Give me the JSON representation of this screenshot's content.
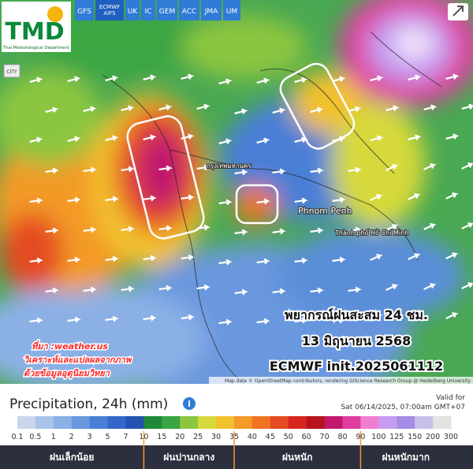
{
  "logo": {
    "title": "TMD",
    "subtitle": "Thai Meteorological Department"
  },
  "model_tabs": [
    "GFS",
    "ECMWF AIFS",
    "UK",
    "IC",
    "GEM",
    "ACC",
    "JMA",
    "UM"
  ],
  "city_button": "CITY",
  "map_labels": {
    "bangkok": "กรุงเทพมหานคร",
    "phnom_penh": "Phnom Penh",
    "hcmc": "Thành phố Hồ Chí Minh"
  },
  "overlay": {
    "title": "พยากรณ์ฝนสะสม 24 ชม.",
    "date": "13 มิถุนายน 2568",
    "model": "ECMWF init.2025061112"
  },
  "source": [
    "ที่มา :weather.us",
    "วิเคราะห์และแปลผลจากภาพ",
    "ด้วยข้อมูลอุตุนิยมวิทยา"
  ],
  "attribution": "Map data © OpenStreetMap contributors, rendering GIScience Research Group @ Heidelberg University",
  "legend": {
    "title": "Precipitation, 24h (mm)",
    "valid_label": "Valid for",
    "valid_time": "Sat 06/14/2025, 07:00am GMT+07",
    "ticks": [
      0.1,
      0.5,
      1,
      2,
      3,
      5,
      7,
      10,
      15,
      20,
      25,
      30,
      35,
      40,
      45,
      50,
      60,
      70,
      80,
      90,
      100,
      125,
      150,
      200,
      300
    ],
    "colors": [
      "#c9d5e8",
      "#aac3ea",
      "#8bb0e6",
      "#6a98de",
      "#4a7fd6",
      "#3467c8",
      "#2452b0",
      "#1f8a3a",
      "#3aa643",
      "#8cc63f",
      "#d6d93a",
      "#f2c12e",
      "#f39a28",
      "#ee7424",
      "#e54b22",
      "#d8251f",
      "#b8141c",
      "#c1186d",
      "#e03da0",
      "#f07ed0",
      "#c59cf2",
      "#a68ce6",
      "#c8c0ea",
      "#e2e2e2"
    ],
    "categories": [
      "ฝนเล็กน้อย",
      "ฝนปานกลาง",
      "ฝนหนัก",
      "ฝนหนักมาก"
    ]
  }
}
